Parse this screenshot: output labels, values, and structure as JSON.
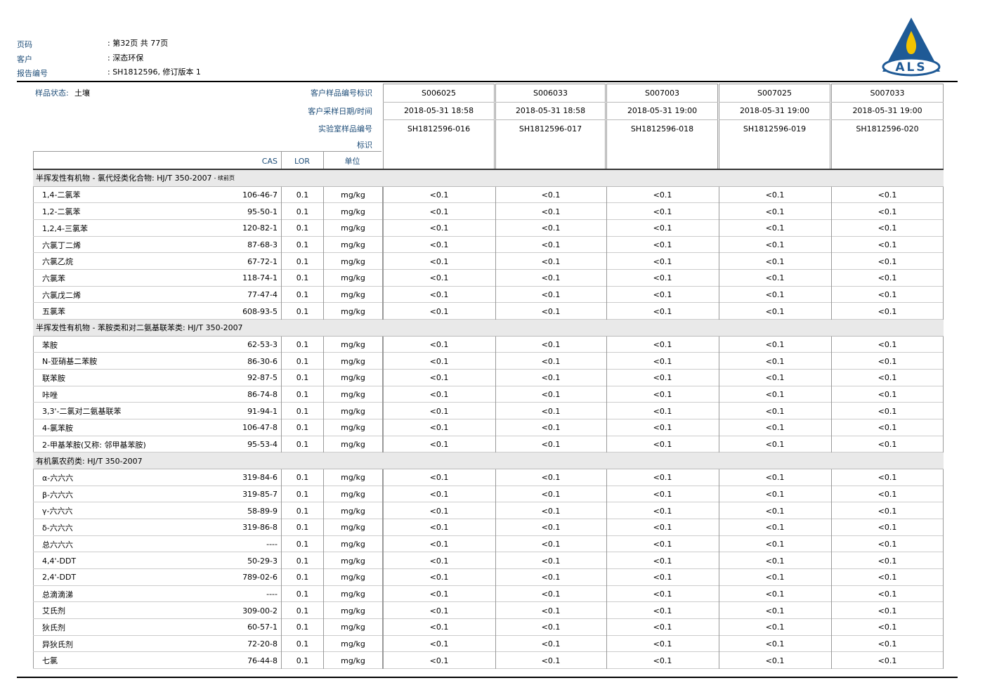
{
  "header": {
    "page_label": "页码",
    "page_value": ": 第32页 共 77页",
    "client_label": "客户",
    "client_value": ": 深态环保",
    "report_label": "报告编号",
    "report_value": ": SH1812596, 修订版本 1",
    "logo_text": "ALS"
  },
  "table": {
    "sample_state_label": "样品状态:",
    "sample_state_value": "土壤",
    "client_id_label": "客户样品编号标识",
    "date_label": "客户采样日期/时间",
    "lab_id_label": [
      "实验室样品编号",
      "标识"
    ],
    "columns": [
      "CAS",
      "LOR",
      "单位"
    ],
    "samples": [
      {
        "client_id": "S006025",
        "date": "2018-05-31 18:58",
        "lab_id": "SH1812596-016"
      },
      {
        "client_id": "S006033",
        "date": "2018-05-31 18:58",
        "lab_id": "SH1812596-017"
      },
      {
        "client_id": "S007003",
        "date": "2018-05-31 19:00",
        "lab_id": "SH1812596-018"
      },
      {
        "client_id": "S007025",
        "date": "2018-05-31 19:00",
        "lab_id": "SH1812596-019"
      },
      {
        "client_id": "S007033",
        "date": "2018-05-31 19:00",
        "lab_id": "SH1812596-020"
      }
    ],
    "sections": [
      {
        "title": "半挥发性有机物 - 氯代烃类化合物: HJ/T 350-2007",
        "note": "- 续前页",
        "rows": [
          [
            "1,4-二氯苯",
            "106-46-7",
            "0.1",
            "mg/kg",
            "<0.1",
            "<0.1",
            "<0.1",
            "<0.1",
            "<0.1"
          ],
          [
            "1,2-二氯苯",
            "95-50-1",
            "0.1",
            "mg/kg",
            "<0.1",
            "<0.1",
            "<0.1",
            "<0.1",
            "<0.1"
          ],
          [
            "1,2,4-三氯苯",
            "120-82-1",
            "0.1",
            "mg/kg",
            "<0.1",
            "<0.1",
            "<0.1",
            "<0.1",
            "<0.1"
          ],
          [
            "六氯丁二烯",
            "87-68-3",
            "0.1",
            "mg/kg",
            "<0.1",
            "<0.1",
            "<0.1",
            "<0.1",
            "<0.1"
          ],
          [
            "六氯乙烷",
            "67-72-1",
            "0.1",
            "mg/kg",
            "<0.1",
            "<0.1",
            "<0.1",
            "<0.1",
            "<0.1"
          ],
          [
            "六氯苯",
            "118-74-1",
            "0.1",
            "mg/kg",
            "<0.1",
            "<0.1",
            "<0.1",
            "<0.1",
            "<0.1"
          ],
          [
            "六氯戊二烯",
            "77-47-4",
            "0.1",
            "mg/kg",
            "<0.1",
            "<0.1",
            "<0.1",
            "<0.1",
            "<0.1"
          ],
          [
            "五氯苯",
            "608-93-5",
            "0.1",
            "mg/kg",
            "<0.1",
            "<0.1",
            "<0.1",
            "<0.1",
            "<0.1"
          ]
        ]
      },
      {
        "title": "半挥发性有机物 - 苯胺类和对二氨基联苯类: HJ/T 350-2007",
        "rows": [
          [
            "苯胺",
            "62-53-3",
            "0.1",
            "mg/kg",
            "<0.1",
            "<0.1",
            "<0.1",
            "<0.1",
            "<0.1"
          ],
          [
            "N-亚硝基二苯胺",
            "86-30-6",
            "0.1",
            "mg/kg",
            "<0.1",
            "<0.1",
            "<0.1",
            "<0.1",
            "<0.1"
          ],
          [
            "联苯胺",
            "92-87-5",
            "0.1",
            "mg/kg",
            "<0.1",
            "<0.1",
            "<0.1",
            "<0.1",
            "<0.1"
          ],
          [
            "咔唑",
            "86-74-8",
            "0.1",
            "mg/kg",
            "<0.1",
            "<0.1",
            "<0.1",
            "<0.1",
            "<0.1"
          ],
          [
            "3,3'-二氯对二氨基联苯",
            "91-94-1",
            "0.1",
            "mg/kg",
            "<0.1",
            "<0.1",
            "<0.1",
            "<0.1",
            "<0.1"
          ],
          [
            "4-氯苯胺",
            "106-47-8",
            "0.1",
            "mg/kg",
            "<0.1",
            "<0.1",
            "<0.1",
            "<0.1",
            "<0.1"
          ],
          [
            "2-甲基苯胺(又称: 邻甲基苯胺)",
            "95-53-4",
            "0.1",
            "mg/kg",
            "<0.1",
            "<0.1",
            "<0.1",
            "<0.1",
            "<0.1"
          ]
        ]
      },
      {
        "title": "有机氯农药类: HJ/T 350-2007",
        "rows": [
          [
            "α-六六六",
            "319-84-6",
            "0.1",
            "mg/kg",
            "<0.1",
            "<0.1",
            "<0.1",
            "<0.1",
            "<0.1"
          ],
          [
            "β-六六六",
            "319-85-7",
            "0.1",
            "mg/kg",
            "<0.1",
            "<0.1",
            "<0.1",
            "<0.1",
            "<0.1"
          ],
          [
            "γ-六六六",
            "58-89-9",
            "0.1",
            "mg/kg",
            "<0.1",
            "<0.1",
            "<0.1",
            "<0.1",
            "<0.1"
          ],
          [
            "δ-六六六",
            "319-86-8",
            "0.1",
            "mg/kg",
            "<0.1",
            "<0.1",
            "<0.1",
            "<0.1",
            "<0.1"
          ],
          [
            "总六六六",
            "----",
            "0.1",
            "mg/kg",
            "<0.1",
            "<0.1",
            "<0.1",
            "<0.1",
            "<0.1"
          ],
          [
            "4,4'-DDT",
            "50-29-3",
            "0.1",
            "mg/kg",
            "<0.1",
            "<0.1",
            "<0.1",
            "<0.1",
            "<0.1"
          ],
          [
            "2,4'-DDT",
            "789-02-6",
            "0.1",
            "mg/kg",
            "<0.1",
            "<0.1",
            "<0.1",
            "<0.1",
            "<0.1"
          ],
          [
            "总滴滴涕",
            "----",
            "0.1",
            "mg/kg",
            "<0.1",
            "<0.1",
            "<0.1",
            "<0.1",
            "<0.1"
          ],
          [
            "艾氏剂",
            "309-00-2",
            "0.1",
            "mg/kg",
            "<0.1",
            "<0.1",
            "<0.1",
            "<0.1",
            "<0.1"
          ],
          [
            "狄氏剂",
            "60-57-1",
            "0.1",
            "mg/kg",
            "<0.1",
            "<0.1",
            "<0.1",
            "<0.1",
            "<0.1"
          ],
          [
            "异狄氏剂",
            "72-20-8",
            "0.1",
            "mg/kg",
            "<0.1",
            "<0.1",
            "<0.1",
            "<0.1",
            "<0.1"
          ],
          [
            "七氯",
            "76-44-8",
            "0.1",
            "mg/kg",
            "<0.1",
            "<0.1",
            "<0.1",
            "<0.1",
            "<0.1"
          ]
        ]
      }
    ]
  }
}
